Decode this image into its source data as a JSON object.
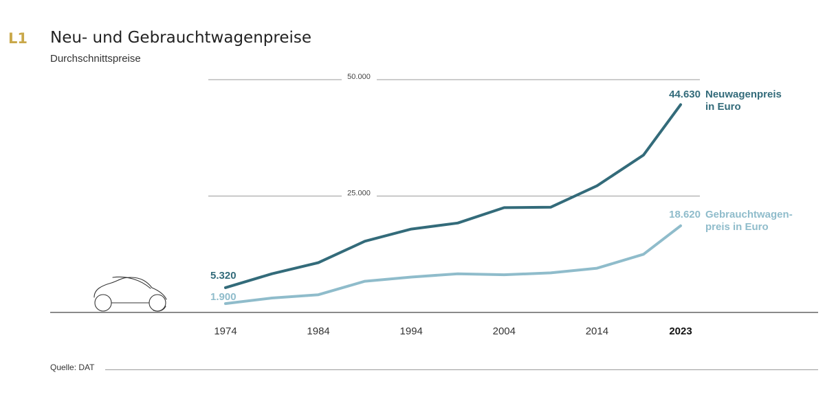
{
  "header": {
    "figure_label": "L1",
    "title": "Neu- und Gebrauchtwagenpreise",
    "subtitle": "Durchschnittspreise"
  },
  "footer": {
    "source": "Quelle: DAT"
  },
  "chart_data": {
    "type": "line",
    "title": "Neu- und Gebrauchtwagenpreise",
    "subtitle": "Durchschnittspreise",
    "x": [
      1974,
      1979,
      1984,
      1989,
      1994,
      1999,
      2004,
      2009,
      2014,
      2019,
      2023
    ],
    "xticks": [
      1974,
      1984,
      1994,
      2004,
      2014,
      2023
    ],
    "xtick_labels": [
      "1974",
      "1984",
      "1994",
      "2004",
      "2014",
      "2023"
    ],
    "highlight_tick": "2023",
    "xlim": [
      1974,
      2023
    ],
    "yticks": [
      25000,
      50000
    ],
    "ytick_labels": [
      "25.000",
      "50.000"
    ],
    "ylim": [
      0,
      50000
    ],
    "grid": true,
    "series": [
      {
        "name": "Neuwagenpreis in Euro",
        "label_lines": [
          "Neuwagenpreis",
          "in Euro"
        ],
        "color": "#336b7a",
        "values": [
          5320,
          8300,
          10700,
          15300,
          17900,
          19200,
          22500,
          22600,
          27200,
          33800,
          44630
        ],
        "start_label": "5.320",
        "end_label": "44.630"
      },
      {
        "name": "Gebrauchtwagenpreis in Euro",
        "label_lines": [
          "Gebrauchtwagen-",
          "preis in Euro"
        ],
        "color": "#8fbccb",
        "values": [
          1900,
          3100,
          3800,
          6700,
          7600,
          8300,
          8100,
          8500,
          9500,
          12500,
          18620
        ],
        "start_label": "1.900",
        "end_label": "18.620"
      }
    ]
  }
}
